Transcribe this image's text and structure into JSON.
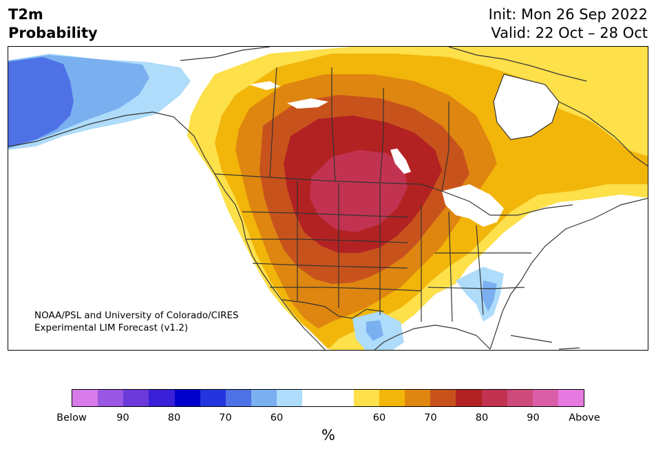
{
  "title": {
    "line1": "T2m",
    "line2": "Probability"
  },
  "header_right": {
    "init": "Init: Mon 26 Sep 2022",
    "valid": "Valid: 22 Oct – 28 Oct"
  },
  "credit": {
    "line1": "NOAA/PSL and University of Colorado/CIRES",
    "line2": "Experimental LIM Forecast (v1.2)"
  },
  "colorbar": {
    "colors": [
      "#d87bea",
      "#9a57e3",
      "#6b3ad9",
      "#3a1fd8",
      "#0000cc",
      "#2535dd",
      "#4f71e6",
      "#7aaff0",
      "#aedcfa",
      "#ffffff",
      "#ffffff",
      "#fde04a",
      "#f2b50a",
      "#de8610",
      "#c8521c",
      "#b22222",
      "#c13350",
      "#cd4b7a",
      "#da5fa8",
      "#e77ae0"
    ],
    "labels": [
      "Below",
      "90",
      "80",
      "70",
      "60",
      "60",
      "70",
      "80",
      "90",
      "Above"
    ],
    "unit": "%"
  },
  "map_colors": {
    "ocean": "#ffffff",
    "land": "#ffffff",
    "below_60": "#aedcfa",
    "below_70": "#7aaff0",
    "below_80": "#4f71e6",
    "above_60": "#fde04a",
    "above_70": "#f2b50a",
    "above_80": "#de8610",
    "above_90": "#c8521c",
    "above_95": "#b22222",
    "above_max": "#c13350",
    "borders": "#333333"
  }
}
